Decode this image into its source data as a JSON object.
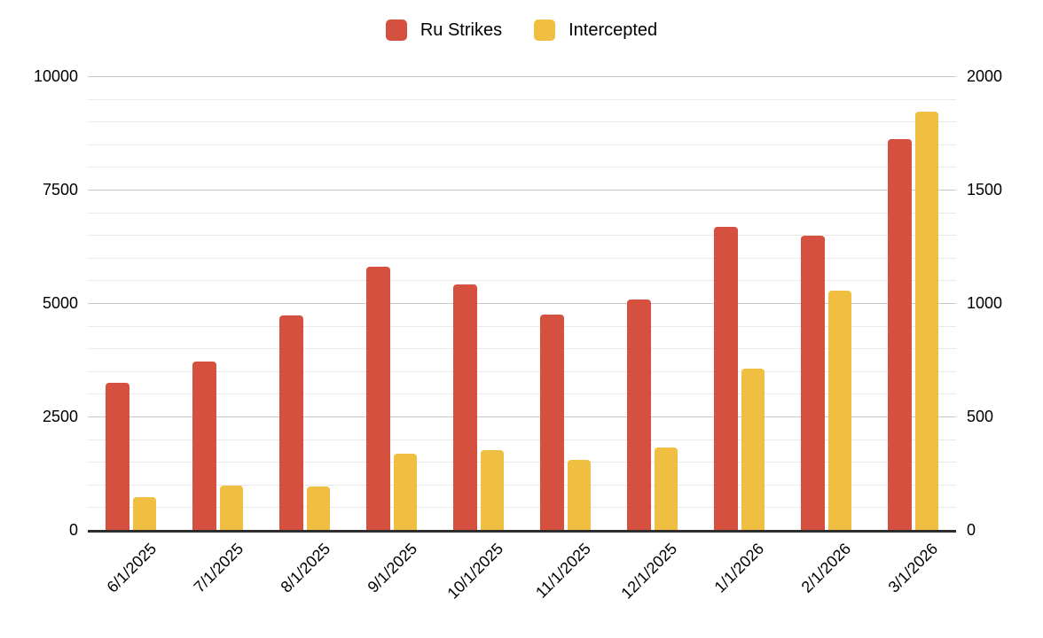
{
  "legend": {
    "items": [
      {
        "label": "Ru Strikes",
        "color": "#D5503F"
      },
      {
        "label": "Intercepted",
        "color": "#F0BF41"
      }
    ]
  },
  "chart_data": {
    "type": "bar",
    "title": "",
    "categories": [
      "6/1/2025",
      "7/1/2025",
      "8/1/2025",
      "9/1/2025",
      "10/1/2025",
      "11/1/2025",
      "12/1/2025",
      "1/1/2026",
      "2/1/2026",
      "3/1/2026"
    ],
    "series": [
      {
        "name": "Ru Strikes",
        "axis": "left",
        "color": "#D5503F",
        "values": [
          3240,
          3710,
          4730,
          5800,
          5410,
          4750,
          5080,
          6680,
          6480,
          8610
        ]
      },
      {
        "name": "Intercepted",
        "axis": "right",
        "color": "#F0BF41",
        "values": [
          145,
          195,
          190,
          335,
          350,
          310,
          365,
          710,
          1055,
          1845
        ]
      }
    ],
    "axes": {
      "left": {
        "min": 0,
        "max": 10000,
        "ticks": [
          0,
          2500,
          5000,
          7500,
          10000
        ],
        "minor_step": 500
      },
      "right": {
        "min": 0,
        "max": 2000,
        "ticks": [
          0,
          500,
          1000,
          1500,
          2000
        ]
      }
    },
    "grid": true,
    "legend_position": "top"
  },
  "style": {
    "series_red": "#D5503F",
    "series_yellow": "#F0BF41",
    "major_grid": "#C9C9C9",
    "minor_grid": "#E9E9E9",
    "axis_line": "#2E2E2E",
    "label_color": "#000000",
    "background": "#FFFFFF"
  }
}
